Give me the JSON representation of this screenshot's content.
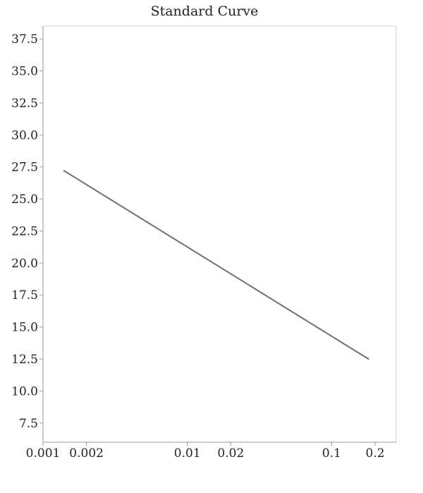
{
  "chart_data": {
    "type": "line",
    "title": "Standard Curve",
    "xlabel": "",
    "ylabel": "",
    "x_scale": "log",
    "xlim": [
      0.001,
      0.28
    ],
    "ylim": [
      6.0,
      38.5
    ],
    "x_ticks": [
      0.001,
      0.002,
      0.01,
      0.02,
      0.1,
      0.2
    ],
    "x_tick_labels": [
      "0.001",
      "0.002",
      "0.01",
      "0.02",
      "0.1",
      "0.2"
    ],
    "y_ticks": [
      7.5,
      10.0,
      12.5,
      15.0,
      17.5,
      20.0,
      22.5,
      25.0,
      27.5,
      30.0,
      32.5,
      35.0,
      37.5
    ],
    "y_tick_labels": [
      "7.5",
      "10.0",
      "12.5",
      "15.0",
      "17.5",
      "20.0",
      "22.5",
      "25.0",
      "27.5",
      "30.0",
      "32.5",
      "35.0",
      "37.5"
    ],
    "grid": false,
    "legend": "none",
    "series": [
      {
        "color": "#6b7570",
        "x": [
          0.0014,
          0.18
        ],
        "y": [
          27.2,
          12.5
        ]
      }
    ]
  }
}
